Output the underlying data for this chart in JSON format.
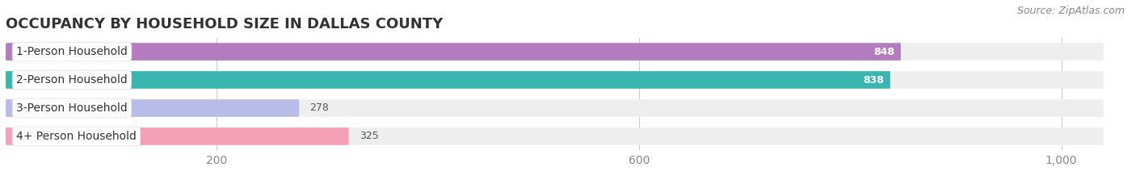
{
  "title": "OCCUPANCY BY HOUSEHOLD SIZE IN DALLAS COUNTY",
  "source": "Source: ZipAtlas.com",
  "categories": [
    "1-Person Household",
    "2-Person Household",
    "3-Person Household",
    "4+ Person Household"
  ],
  "values": [
    848,
    838,
    278,
    325
  ],
  "bar_colors": [
    "#b57bbf",
    "#3ab5b0",
    "#b8bce8",
    "#f4a0b5"
  ],
  "label_colors": [
    "white",
    "white",
    "#555555",
    "#555555"
  ],
  "xlim": [
    0,
    1060
  ],
  "data_max": 1000,
  "xticks": [
    200,
    600,
    1000
  ],
  "xtick_labels": [
    "200",
    "600",
    "1,000"
  ],
  "background_color": "#ffffff",
  "bar_background_color": "#eeeeee",
  "title_fontsize": 13,
  "source_fontsize": 9,
  "tick_fontsize": 10,
  "bar_label_fontsize": 9,
  "category_fontsize": 10
}
